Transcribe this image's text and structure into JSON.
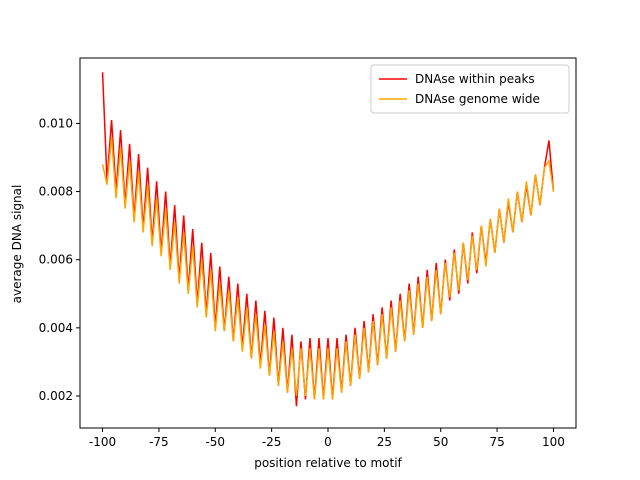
{
  "chart_data": {
    "type": "line",
    "xlabel": "position relative to motif",
    "ylabel": "average DNA signal",
    "x": [
      -100,
      -98,
      -96,
      -94,
      -92,
      -90,
      -88,
      -86,
      -84,
      -82,
      -80,
      -78,
      -76,
      -74,
      -72,
      -70,
      -68,
      -66,
      -64,
      -62,
      -60,
      -58,
      -56,
      -54,
      -52,
      -50,
      -48,
      -46,
      -44,
      -42,
      -40,
      -38,
      -36,
      -34,
      -32,
      -30,
      -28,
      -26,
      -24,
      -22,
      -20,
      -18,
      -16,
      -14,
      -12,
      -10,
      -8,
      -6,
      -4,
      -2,
      0,
      2,
      4,
      6,
      8,
      10,
      12,
      14,
      16,
      18,
      20,
      22,
      24,
      26,
      28,
      30,
      32,
      34,
      36,
      38,
      40,
      42,
      44,
      46,
      48,
      50,
      52,
      54,
      56,
      58,
      60,
      62,
      64,
      66,
      68,
      70,
      72,
      74,
      76,
      78,
      80,
      82,
      84,
      86,
      88,
      90,
      92,
      94,
      96,
      98,
      100
    ],
    "series": [
      {
        "name": "DNAse within peaks",
        "color": "#ff0000",
        "values": [
          0.0115,
          0.0083,
          0.0101,
          0.008,
          0.0098,
          0.0076,
          0.0094,
          0.0072,
          0.0091,
          0.0069,
          0.0087,
          0.0065,
          0.0083,
          0.0062,
          0.008,
          0.0058,
          0.0076,
          0.0054,
          0.0073,
          0.0051,
          0.0069,
          0.0047,
          0.0065,
          0.0044,
          0.0062,
          0.004,
          0.0058,
          0.0039,
          0.0055,
          0.0036,
          0.0053,
          0.0034,
          0.005,
          0.0031,
          0.0048,
          0.0029,
          0.0045,
          0.0026,
          0.0043,
          0.0023,
          0.004,
          0.0021,
          0.0038,
          0.0017,
          0.0036,
          0.0019,
          0.0037,
          0.0019,
          0.0037,
          0.0019,
          0.0037,
          0.0019,
          0.0037,
          0.0021,
          0.0038,
          0.0023,
          0.004,
          0.0025,
          0.0042,
          0.0027,
          0.0044,
          0.0029,
          0.0046,
          0.0031,
          0.0048,
          0.0033,
          0.005,
          0.0036,
          0.0053,
          0.0038,
          0.0055,
          0.004,
          0.0057,
          0.0042,
          0.0059,
          0.0044,
          0.006,
          0.0048,
          0.0063,
          0.005,
          0.0065,
          0.0053,
          0.0068,
          0.0056,
          0.007,
          0.0059,
          0.0072,
          0.0062,
          0.0075,
          0.0065,
          0.0077,
          0.0068,
          0.008,
          0.0071,
          0.0082,
          0.0073,
          0.0085,
          0.0076,
          0.0087,
          0.0095,
          0.008
        ]
      },
      {
        "name": "DNAse genome wide",
        "color": "#ffa500",
        "values": [
          0.0088,
          0.0082,
          0.0096,
          0.0078,
          0.0093,
          0.0075,
          0.0089,
          0.0071,
          0.0086,
          0.0068,
          0.0082,
          0.0064,
          0.0078,
          0.0061,
          0.0075,
          0.0057,
          0.0071,
          0.0053,
          0.0068,
          0.005,
          0.0064,
          0.0046,
          0.006,
          0.0043,
          0.0057,
          0.0039,
          0.0053,
          0.0039,
          0.0051,
          0.0036,
          0.0049,
          0.0033,
          0.0046,
          0.0031,
          0.0044,
          0.0028,
          0.0041,
          0.0026,
          0.0039,
          0.0023,
          0.0036,
          0.0021,
          0.0034,
          0.002,
          0.0034,
          0.002,
          0.0034,
          0.0019,
          0.0034,
          0.0019,
          0.0034,
          0.0019,
          0.0034,
          0.0021,
          0.0036,
          0.0023,
          0.0038,
          0.0025,
          0.004,
          0.0027,
          0.0042,
          0.0029,
          0.0044,
          0.0031,
          0.0046,
          0.0033,
          0.0048,
          0.0036,
          0.0051,
          0.0038,
          0.0053,
          0.004,
          0.0055,
          0.0042,
          0.0057,
          0.0044,
          0.0059,
          0.0049,
          0.0062,
          0.0051,
          0.0065,
          0.0054,
          0.0067,
          0.0057,
          0.007,
          0.0058,
          0.0072,
          0.0062,
          0.0075,
          0.0065,
          0.0078,
          0.0068,
          0.008,
          0.0071,
          0.0083,
          0.0073,
          0.0085,
          0.0076,
          0.0087,
          0.0089,
          0.008
        ]
      }
    ],
    "xlim": [
      -110,
      110
    ],
    "xticks": [
      -100,
      -75,
      -50,
      -25,
      0,
      25,
      50,
      75,
      100
    ],
    "ylim": [
      0.00106,
      0.01192
    ],
    "yticks": [
      0.002,
      0.004,
      0.006,
      0.008,
      {
        "value": 0.01,
        "label": "0.010"
      }
    ],
    "legend": "upper right",
    "grid": false
  }
}
